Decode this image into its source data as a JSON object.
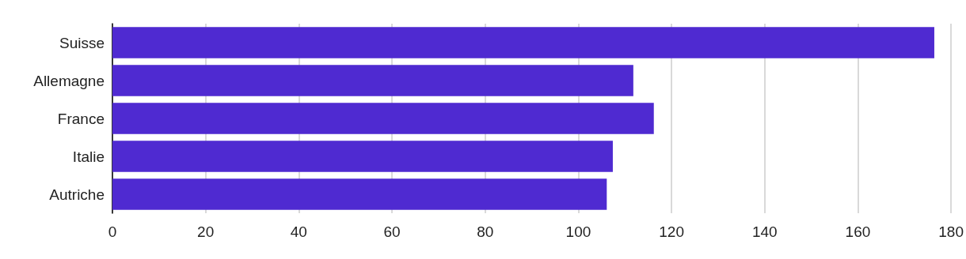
{
  "chart_data": {
    "type": "bar",
    "orientation": "horizontal",
    "categories": [
      "Suisse",
      "Allemagne",
      "France",
      "Italie",
      "Autriche"
    ],
    "values": [
      176.4,
      111.8,
      116.2,
      107.4,
      106.1
    ],
    "color": "#4f2ad1",
    "xlim": [
      0,
      180
    ],
    "xticks": [
      0,
      20,
      40,
      60,
      80,
      100,
      120,
      140,
      160,
      180
    ],
    "grid": "x"
  }
}
